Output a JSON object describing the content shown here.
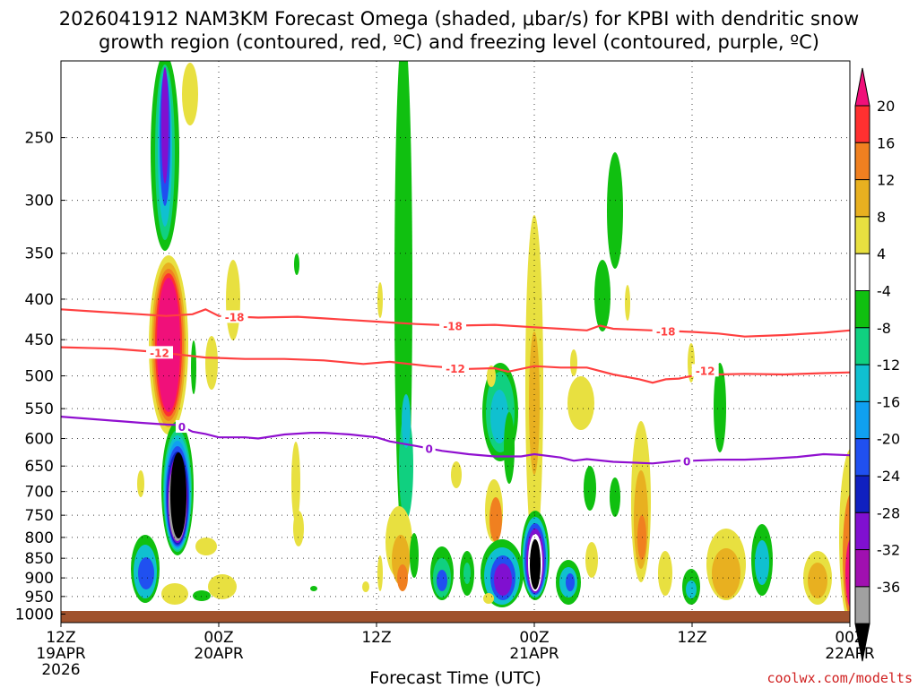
{
  "colors": {
    "omega": {
      "pink": "#f0107a",
      "red": "#ff3030",
      "orange": "#f08020",
      "dark_yellow": "#e8b020",
      "yellow": "#e8e040",
      "white": "#ffffff",
      "green": "#10c010",
      "sea_green": "#10d080",
      "cyan": "#10c0d0",
      "sky_blue": "#10a0f0",
      "blue": "#2050f0",
      "dark_blue": "#1020c0",
      "violet": "#8010d0",
      "purple": "#a010b0",
      "gray": "#a0a0a0",
      "black": "#000000"
    },
    "dgz_contour": "#ff4040",
    "freezing_contour": "#9010d0",
    "ground": "#a0522d"
  },
  "chart_data": {
    "type": "heatmap",
    "title_line1": "2026041912 NAM3KM Forecast Omega (shaded, μbar/s) for KPBI with dendritic snow",
    "title_line2": "growth region (contoured, red, ºC) and freezing level (contoured, purple, ºC)",
    "xlabel": "Forecast Time (UTC)",
    "credit": "coolwx.com/modelts",
    "x_range_hours": [
      0,
      60
    ],
    "y_range_hpa": [
      1025,
      200
    ],
    "x_ticks": [
      {
        "hour": 0,
        "label1": "12Z",
        "label2": "19APR",
        "label3": "2026"
      },
      {
        "hour": 12,
        "label1": "00Z",
        "label2": "20APR",
        "label3": ""
      },
      {
        "hour": 24,
        "label1": "12Z",
        "label2": "",
        "label3": ""
      },
      {
        "hour": 36,
        "label1": "00Z",
        "label2": "21APR",
        "label3": ""
      },
      {
        "hour": 48,
        "label1": "12Z",
        "label2": "",
        "label3": ""
      },
      {
        "hour": 60,
        "label1": "00Z",
        "label2": "22APR",
        "label3": ""
      }
    ],
    "y_ticks": [
      {
        "hpa": 250,
        "label": "250"
      },
      {
        "hpa": 300,
        "label": "300"
      },
      {
        "hpa": 350,
        "label": "350"
      },
      {
        "hpa": 400,
        "label": "400"
      },
      {
        "hpa": 450,
        "label": "450"
      },
      {
        "hpa": 500,
        "label": "500"
      },
      {
        "hpa": 550,
        "label": "550"
      },
      {
        "hpa": 600,
        "label": "600"
      },
      {
        "hpa": 650,
        "label": "650"
      },
      {
        "hpa": 700,
        "label": "700"
      },
      {
        "hpa": 750,
        "label": "750"
      },
      {
        "hpa": 800,
        "label": "800"
      },
      {
        "hpa": 850,
        "label": "850"
      },
      {
        "hpa": 900,
        "label": "900"
      },
      {
        "hpa": 950,
        "label": "950"
      },
      {
        "hpa": 1000,
        "label": "1000"
      }
    ],
    "colorbar": {
      "levels": [
        {
          "label": "20",
          "color": "#f0107a"
        },
        {
          "label": "16",
          "color": "#ff3030"
        },
        {
          "label": "12",
          "color": "#f08020"
        },
        {
          "label": "8",
          "color": "#e8b020"
        },
        {
          "label": "4",
          "color": "#e8e040"
        },
        {
          "label": "-4",
          "color": "#ffffff"
        },
        {
          "label": "-8",
          "color": "#10c010"
        },
        {
          "label": "-12",
          "color": "#10d080"
        },
        {
          "label": "-16",
          "color": "#10c0d0"
        },
        {
          "label": "-20",
          "color": "#10a0f0"
        },
        {
          "label": "-24",
          "color": "#2050f0"
        },
        {
          "label": "-28",
          "color": "#1020c0"
        },
        {
          "label": "-32",
          "color": "#8010d0"
        },
        {
          "label": "-36",
          "color": "#a010b0"
        }
      ],
      "extra_lower": [
        {
          "color": "#a0a0a0"
        },
        {
          "color": "#000000"
        }
      ],
      "top_arrow_color": "#f0107a",
      "bottom_arrow_color": "#000000"
    },
    "contours": [
      {
        "name": "-18 °C isotherm",
        "label": "-18",
        "color": "#ff4040",
        "points": [
          [
            0,
            412
          ],
          [
            3,
            415
          ],
          [
            6,
            418
          ],
          [
            8,
            420
          ],
          [
            10,
            418
          ],
          [
            11,
            412
          ],
          [
            12,
            420
          ],
          [
            15,
            422
          ],
          [
            18,
            421
          ],
          [
            20,
            423
          ],
          [
            22,
            425
          ],
          [
            24,
            427
          ],
          [
            27,
            430
          ],
          [
            30,
            432
          ],
          [
            33,
            431
          ],
          [
            36,
            434
          ],
          [
            38,
            436
          ],
          [
            40,
            438
          ],
          [
            41,
            432
          ],
          [
            42,
            436
          ],
          [
            45,
            438
          ],
          [
            48,
            440
          ],
          [
            50,
            442
          ],
          [
            52,
            446
          ],
          [
            55,
            444
          ],
          [
            58,
            441
          ],
          [
            60,
            438
          ]
        ],
        "label_hours": [
          13.2,
          29.8,
          46.0
        ]
      },
      {
        "name": "-12 °C isotherm",
        "label": "-12",
        "color": "#ff4040",
        "points": [
          [
            0,
            460
          ],
          [
            4,
            462
          ],
          [
            7,
            466
          ],
          [
            9,
            470
          ],
          [
            11,
            474
          ],
          [
            14,
            476
          ],
          [
            17,
            476
          ],
          [
            20,
            478
          ],
          [
            23,
            483
          ],
          [
            25,
            480
          ],
          [
            28,
            486
          ],
          [
            31,
            490
          ],
          [
            33,
            489
          ],
          [
            34,
            494
          ],
          [
            36,
            486
          ],
          [
            38,
            488
          ],
          [
            40,
            488
          ],
          [
            42,
            498
          ],
          [
            44,
            505
          ],
          [
            45,
            510
          ],
          [
            46,
            505
          ],
          [
            47,
            504
          ],
          [
            48,
            500
          ],
          [
            49,
            492
          ],
          [
            50,
            498
          ],
          [
            52,
            497
          ],
          [
            55,
            498
          ],
          [
            58,
            496
          ],
          [
            60,
            495
          ]
        ],
        "label_hours": [
          7.5,
          30.0,
          49.0
        ]
      },
      {
        "name": "0 °C freezing level",
        "label": "0",
        "color": "#9010d0",
        "points": [
          [
            0,
            563
          ],
          [
            3,
            568
          ],
          [
            6,
            573
          ],
          [
            8,
            576
          ],
          [
            9,
            577
          ],
          [
            10,
            588
          ],
          [
            11,
            592
          ],
          [
            12,
            598
          ],
          [
            14,
            598
          ],
          [
            15,
            600
          ],
          [
            17,
            593
          ],
          [
            19,
            590
          ],
          [
            20,
            590
          ],
          [
            22,
            593
          ],
          [
            24,
            598
          ],
          [
            25,
            605
          ],
          [
            27,
            613
          ],
          [
            29,
            622
          ],
          [
            31,
            628
          ],
          [
            33,
            632
          ],
          [
            35,
            632
          ],
          [
            36,
            628
          ],
          [
            38,
            634
          ],
          [
            39,
            640
          ],
          [
            40,
            637
          ],
          [
            42,
            642
          ],
          [
            44,
            644
          ],
          [
            45,
            645
          ],
          [
            47,
            640
          ],
          [
            48,
            640
          ],
          [
            50,
            638
          ],
          [
            52,
            638
          ],
          [
            54,
            636
          ],
          [
            56,
            633
          ],
          [
            58,
            628
          ],
          [
            60,
            630
          ]
        ],
        "label_hours": [
          9.2,
          28.0,
          47.6
        ]
      }
    ]
  }
}
